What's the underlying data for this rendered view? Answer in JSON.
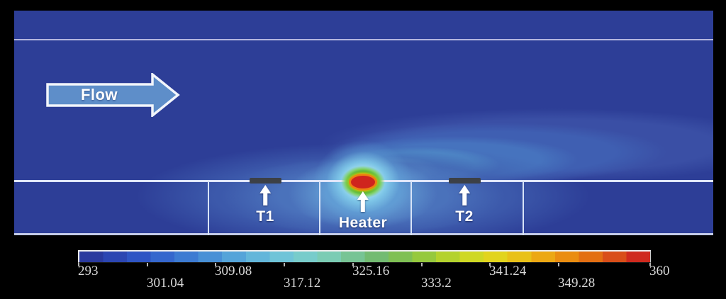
{
  "figure": {
    "flow_arrow": {
      "label": "Flow"
    },
    "markers": [
      {
        "id": "t1",
        "label": "T1"
      },
      {
        "id": "heater",
        "label": "Heater"
      },
      {
        "id": "t2",
        "label": "T2"
      }
    ]
  },
  "colorbar": {
    "min": 293,
    "max": 360,
    "ticks": [
      {
        "value": 293,
        "label": "293",
        "row": "top"
      },
      {
        "value": 301.04,
        "label": "301.04",
        "row": "bottom"
      },
      {
        "value": 309.08,
        "label": "309.08",
        "row": "top"
      },
      {
        "value": 317.12,
        "label": "317.12",
        "row": "bottom"
      },
      {
        "value": 325.16,
        "label": "325.16",
        "row": "top"
      },
      {
        "value": 333.2,
        "label": "333.2",
        "row": "bottom"
      },
      {
        "value": 341.24,
        "label": "341.24",
        "row": "top"
      },
      {
        "value": 349.28,
        "label": "349.28",
        "row": "bottom"
      },
      {
        "value": 360,
        "label": "360",
        "row": "top"
      }
    ],
    "gradient_colors": [
      "#2a3a9e",
      "#2c46b2",
      "#2f55c4",
      "#3567cd",
      "#3d7bd2",
      "#4890d6",
      "#55a4d9",
      "#63b6da",
      "#6fc4d8",
      "#78cccb",
      "#7bccb4",
      "#77c495",
      "#73bb72",
      "#7fc054",
      "#96c93e",
      "#b4d22e",
      "#cfd823",
      "#e2d41d",
      "#e9c118",
      "#eca814",
      "#ea8d11",
      "#e36f13",
      "#d94e19",
      "#cf2a1e"
    ]
  },
  "colors": {
    "frame": "#000000",
    "domain_background": "#2d3e97",
    "flow_arrow_fill": "#5e8ec9",
    "sensor_bar": "#3c4046",
    "hotspot_core": "#cf241e",
    "wall_line": "#dfe6fa"
  },
  "chart_data": {
    "type": "heatmap",
    "title": "",
    "field": "temperature",
    "colorbar_range": [
      293,
      360
    ],
    "colorbar_ticks": [
      293,
      301.04,
      309.08,
      317.12,
      325.16,
      333.2,
      341.24,
      349.28,
      360
    ],
    "annotations": [
      "Flow",
      "T1",
      "Heater",
      "T2"
    ],
    "ambient_value": 293,
    "peak_value": 360,
    "peak_location": "heater",
    "legend_position": "bottom",
    "description": "Channel flow left-to-right over a wall-mounted heater; thermal plume advects downstream past sensor T2; sensors T1 (upstream) and T2 (downstream) sit on the wall."
  }
}
